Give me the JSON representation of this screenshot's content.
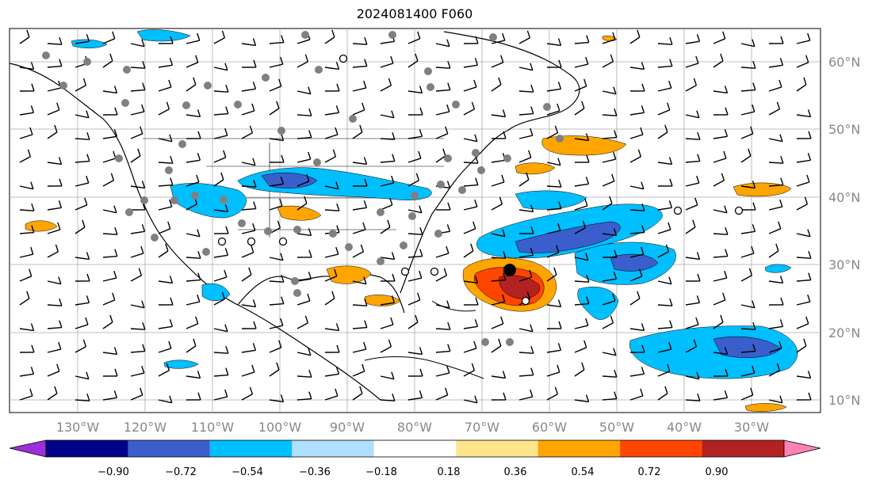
{
  "title": "2024081400 F060",
  "map": {
    "lat_labels": [
      "60°N",
      "50°N",
      "40°N",
      "30°N",
      "20°N",
      "10°N"
    ],
    "lon_labels": [
      "130°W",
      "120°W",
      "110°W",
      "100°W",
      "90°W",
      "80°W",
      "70°W",
      "60°W",
      "50°W",
      "40°W",
      "30°W"
    ],
    "extent": {
      "lon_min": -141,
      "lon_max": -21,
      "lat_min": 8,
      "lat_max": 65
    },
    "gridlines": true,
    "overlays": [
      "filled anomaly contours",
      "wind barbs",
      "station markers",
      "coastlines",
      "state borders"
    ]
  },
  "colorbar": {
    "levels": [
      "−0.90",
      "−0.72",
      "−0.54",
      "−0.36",
      "−0.18",
      "0.18",
      "0.36",
      "0.54",
      "0.72",
      "0.90"
    ],
    "colors": [
      "#9b30d9",
      "#00008b",
      "#3a5fcd",
      "#00bfff",
      "#b0e0ff",
      "#ffffff",
      "#fde58c",
      "#ffa500",
      "#ff4500",
      "#b22222",
      "#ff82b4"
    ],
    "extend": "both"
  }
}
